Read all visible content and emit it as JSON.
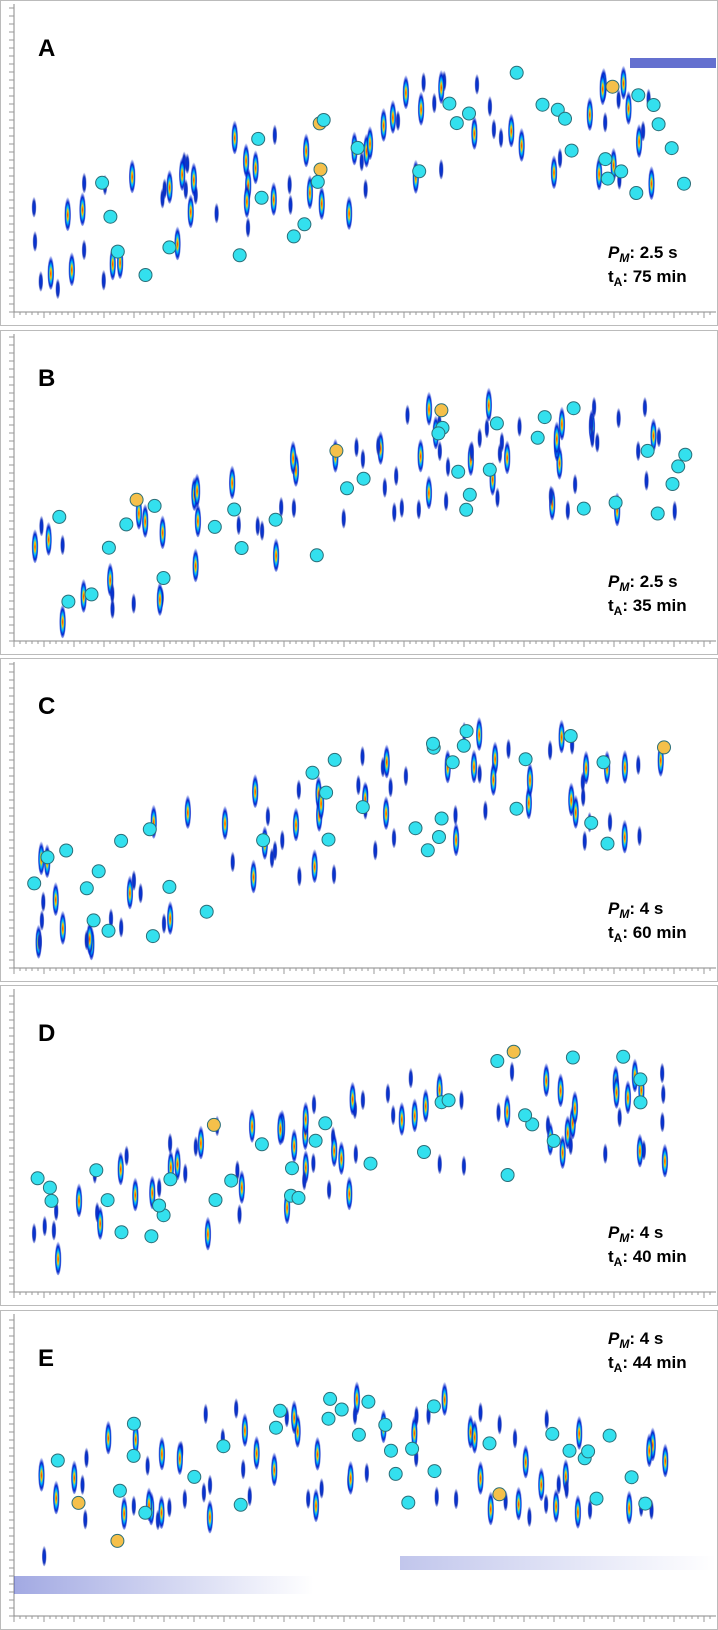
{
  "panels": [
    {
      "label": "A",
      "pm": {
        "symbol": "P",
        "subscript": "M",
        "text": ": 2.5 s"
      },
      "ta": {
        "symbol": "t",
        "subscript": "A",
        "text": ": 75 min"
      }
    },
    {
      "label": "B",
      "pm": {
        "symbol": "P",
        "subscript": "M",
        "text": ": 2.5 s"
      },
      "ta": {
        "symbol": "t",
        "subscript": "A",
        "text": ": 35 min"
      }
    },
    {
      "label": "C",
      "pm": {
        "symbol": "P",
        "subscript": "M",
        "text": ": 4 s"
      },
      "ta": {
        "symbol": "t",
        "subscript": "A",
        "text": ": 60 min"
      }
    },
    {
      "label": "D",
      "pm": {
        "symbol": "P",
        "subscript": "M",
        "text": ": 4 s"
      },
      "ta": {
        "symbol": "t",
        "subscript": "A",
        "text": ": 40 min"
      }
    },
    {
      "label": "E",
      "pm": {
        "symbol": "P",
        "subscript": "M",
        "text": ": 4 s"
      },
      "ta": {
        "symbol": "t",
        "subscript": "A",
        "text": ": 44 min"
      }
    }
  ]
}
